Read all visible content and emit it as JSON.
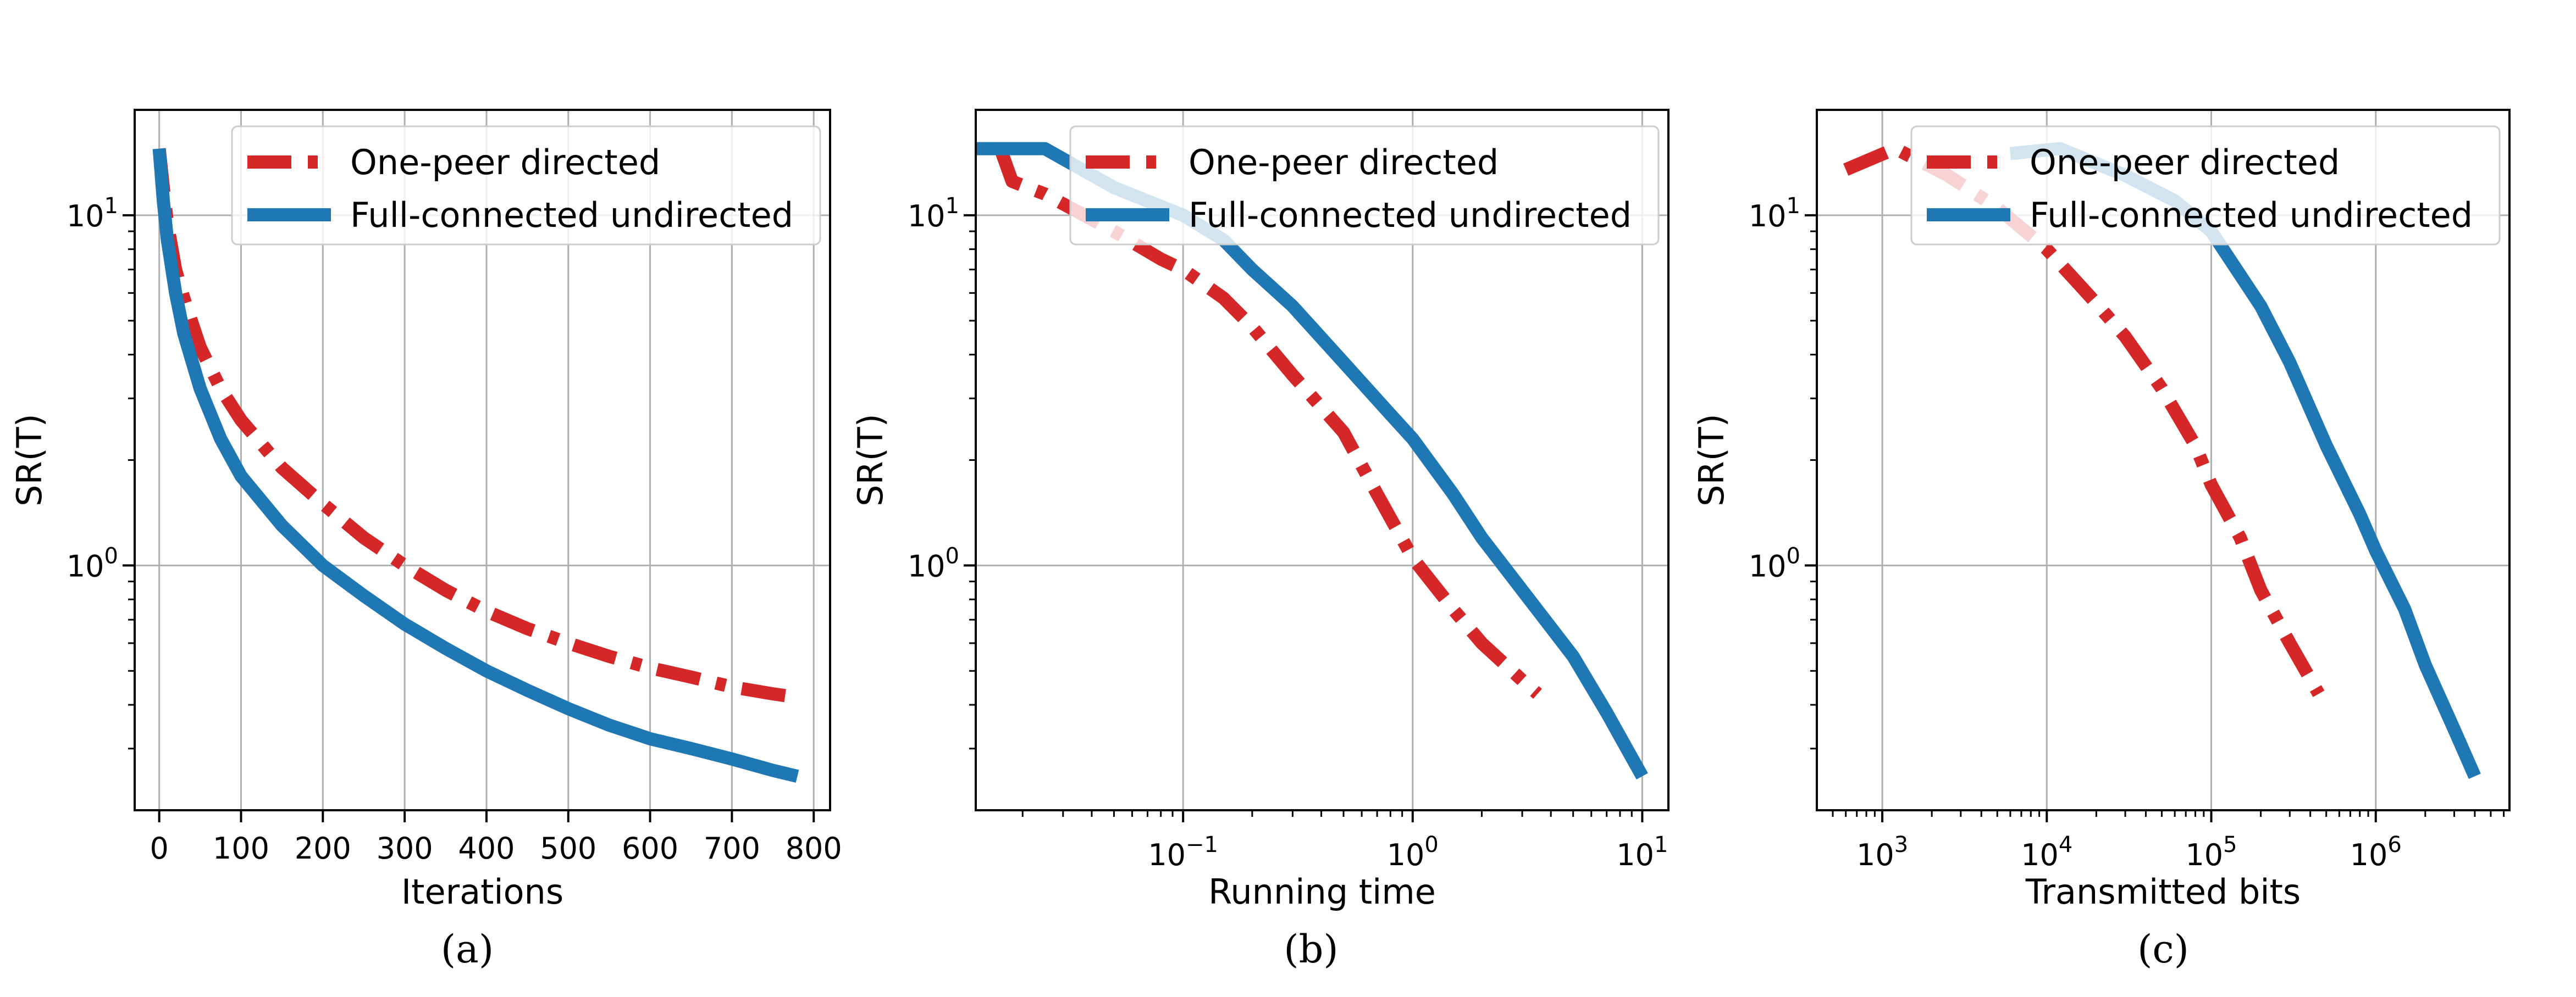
{
  "colors": {
    "one_peer": "#d62728",
    "full_connected": "#1f77b4",
    "grid": "#b0b0b0"
  },
  "legend": {
    "one_peer_label": "One-peer directed",
    "full_connected_label": "Full-connected undirected"
  },
  "chart_data": [
    {
      "type": "line",
      "caption": "(a)",
      "xlabel": "Iterations",
      "ylabel": "SR(T)",
      "xscale": "linear",
      "yscale": "log",
      "xlim": [
        -30,
        820
      ],
      "ylim": [
        0.2,
        20
      ],
      "xticks": [
        {
          "v": 0,
          "label": "0"
        },
        {
          "v": 100,
          "label": "100"
        },
        {
          "v": 200,
          "label": "200"
        },
        {
          "v": 300,
          "label": "300"
        },
        {
          "v": 400,
          "label": "400"
        },
        {
          "v": 500,
          "label": "500"
        },
        {
          "v": 600,
          "label": "600"
        },
        {
          "v": 700,
          "label": "700"
        },
        {
          "v": 800,
          "label": "800"
        }
      ],
      "yticks": [
        {
          "v": 1,
          "base": "10",
          "exp": "0"
        },
        {
          "v": 10,
          "base": "10",
          "exp": "1"
        }
      ],
      "grid": true,
      "legend_position": "top-right",
      "series": [
        {
          "key": "one_peer",
          "style": "dashdot",
          "points": [
            [
              0,
              15.5
            ],
            [
              5,
              12
            ],
            [
              10,
              9.5
            ],
            [
              20,
              7
            ],
            [
              30,
              5.8
            ],
            [
              50,
              4.2
            ],
            [
              75,
              3.2
            ],
            [
              100,
              2.6
            ],
            [
              150,
              1.9
            ],
            [
              200,
              1.5
            ],
            [
              250,
              1.2
            ],
            [
              300,
              1.0
            ],
            [
              350,
              0.85
            ],
            [
              400,
              0.74
            ],
            [
              450,
              0.66
            ],
            [
              500,
              0.6
            ],
            [
              550,
              0.55
            ],
            [
              600,
              0.51
            ],
            [
              650,
              0.48
            ],
            [
              700,
              0.45
            ],
            [
              750,
              0.43
            ],
            [
              780,
              0.42
            ]
          ]
        },
        {
          "key": "full_connected",
          "style": "solid",
          "points": [
            [
              0,
              15.5
            ],
            [
              5,
              11
            ],
            [
              10,
              8.5
            ],
            [
              20,
              6
            ],
            [
              30,
              4.6
            ],
            [
              50,
              3.2
            ],
            [
              75,
              2.3
            ],
            [
              100,
              1.8
            ],
            [
              150,
              1.3
            ],
            [
              200,
              1.0
            ],
            [
              250,
              0.82
            ],
            [
              300,
              0.68
            ],
            [
              350,
              0.58
            ],
            [
              400,
              0.5
            ],
            [
              450,
              0.44
            ],
            [
              500,
              0.39
            ],
            [
              550,
              0.35
            ],
            [
              600,
              0.32
            ],
            [
              650,
              0.3
            ],
            [
              700,
              0.28
            ],
            [
              750,
              0.26
            ],
            [
              780,
              0.25
            ]
          ]
        }
      ]
    },
    {
      "type": "line",
      "caption": "(b)",
      "xlabel": "Running time",
      "ylabel": "SR(T)",
      "xscale": "log",
      "yscale": "log",
      "xlim": [
        0.0125,
        13
      ],
      "ylim": [
        0.2,
        20
      ],
      "xticks": [
        {
          "v": 0.1,
          "base": "10",
          "exp": "−1"
        },
        {
          "v": 1,
          "base": "10",
          "exp": "0"
        },
        {
          "v": 10,
          "base": "10",
          "exp": "1"
        }
      ],
      "yticks": [
        {
          "v": 1,
          "base": "10",
          "exp": "0"
        },
        {
          "v": 10,
          "base": "10",
          "exp": "1"
        }
      ],
      "grid": true,
      "legend_position": "top-right",
      "series": [
        {
          "key": "one_peer",
          "style": "dashdot",
          "points": [
            [
              0.016,
              15.5
            ],
            [
              0.018,
              12.5
            ],
            [
              0.025,
              11.5
            ],
            [
              0.05,
              9
            ],
            [
              0.08,
              7.5
            ],
            [
              0.1,
              7
            ],
            [
              0.15,
              5.8
            ],
            [
              0.2,
              4.8
            ],
            [
              0.3,
              3.5
            ],
            [
              0.5,
              2.4
            ],
            [
              0.7,
              1.6
            ],
            [
              1.0,
              1.05
            ],
            [
              1.5,
              0.75
            ],
            [
              2.0,
              0.6
            ],
            [
              3.0,
              0.47
            ],
            [
              3.5,
              0.43
            ]
          ]
        },
        {
          "key": "full_connected",
          "style": "solid",
          "points": [
            [
              0.0125,
              15.5
            ],
            [
              0.025,
              15.5
            ],
            [
              0.05,
              12
            ],
            [
              0.1,
              10
            ],
            [
              0.15,
              8.5
            ],
            [
              0.2,
              7
            ],
            [
              0.3,
              5.5
            ],
            [
              0.5,
              3.8
            ],
            [
              0.8,
              2.7
            ],
            [
              1.0,
              2.3
            ],
            [
              1.5,
              1.6
            ],
            [
              2.0,
              1.2
            ],
            [
              3.0,
              0.85
            ],
            [
              5.0,
              0.55
            ],
            [
              7.0,
              0.38
            ],
            [
              10.0,
              0.25
            ]
          ]
        }
      ]
    },
    {
      "type": "line",
      "caption": "(c)",
      "xlabel": "Transmitted bits",
      "ylabel": "SR(T)",
      "xscale": "log",
      "yscale": "log",
      "xlim": [
        400,
        6500000
      ],
      "ylim": [
        0.2,
        20
      ],
      "xticks": [
        {
          "v": 1000,
          "base": "10",
          "exp": "3"
        },
        {
          "v": 10000,
          "base": "10",
          "exp": "4"
        },
        {
          "v": 100000,
          "base": "10",
          "exp": "5"
        },
        {
          "v": 1000000,
          "base": "10",
          "exp": "6"
        }
      ],
      "yticks": [
        {
          "v": 1,
          "base": "10",
          "exp": "0"
        },
        {
          "v": 10,
          "base": "10",
          "exp": "1"
        }
      ],
      "grid": true,
      "legend_position": "top-right",
      "series": [
        {
          "key": "one_peer",
          "style": "dashdot",
          "points": [
            [
              600,
              13.5
            ],
            [
              1200,
              15.5
            ],
            [
              2500,
              13
            ],
            [
              5000,
              10.5
            ],
            [
              10000,
              8
            ],
            [
              15000,
              6.5
            ],
            [
              20000,
              5.6
            ],
            [
              30000,
              4.5
            ],
            [
              50000,
              3.2
            ],
            [
              80000,
              2.2
            ],
            [
              100000,
              1.7
            ],
            [
              150000,
              1.2
            ],
            [
              200000,
              0.85
            ],
            [
              300000,
              0.6
            ],
            [
              450000,
              0.43
            ]
          ]
        },
        {
          "key": "full_connected",
          "style": "solid",
          "points": [
            [
              6000,
              15
            ],
            [
              12000,
              15.5
            ],
            [
              30000,
              13
            ],
            [
              60000,
              11
            ],
            [
              100000,
              9
            ],
            [
              200000,
              5.5
            ],
            [
              300000,
              3.8
            ],
            [
              500000,
              2.2
            ],
            [
              800000,
              1.4
            ],
            [
              1000000,
              1.1
            ],
            [
              1500000,
              0.75
            ],
            [
              2000000,
              0.52
            ],
            [
              3000000,
              0.34
            ],
            [
              4000000,
              0.25
            ]
          ]
        }
      ]
    }
  ]
}
